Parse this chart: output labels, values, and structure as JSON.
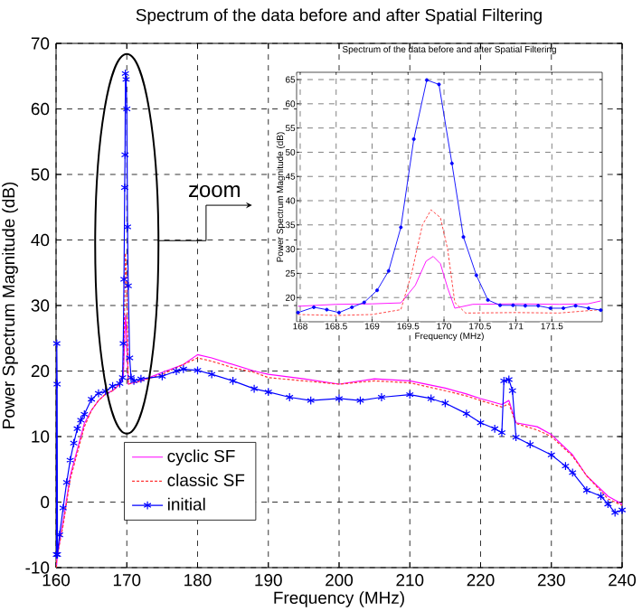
{
  "chart_data": [
    {
      "type": "line",
      "title": "Spectrum of the data before and after Spatial Filtering",
      "xlabel": "Frequency (MHz)",
      "ylabel": "Power Spectrum Magnitude (dB)",
      "xlim": [
        160,
        240
      ],
      "ylim": [
        -10,
        70
      ],
      "xticks": [
        160,
        170,
        180,
        190,
        200,
        210,
        220,
        230,
        240
      ],
      "yticks": [
        -10,
        0,
        10,
        20,
        30,
        40,
        50,
        60,
        70
      ],
      "grid": true,
      "legend": "bottom left",
      "annotations": [
        "zoom"
      ],
      "series": [
        {
          "name": "cyclic SF",
          "color": "#ff00ff",
          "line_style": "solid",
          "marker": "none",
          "x": [
            160.05,
            160.1,
            160.2,
            161,
            162,
            163,
            164,
            165,
            166,
            167,
            168,
            169,
            169.5,
            169.7,
            169.8,
            170,
            170.2,
            172,
            175,
            178,
            180,
            182,
            185,
            188,
            190,
            195,
            200,
            205,
            210,
            215,
            218,
            220,
            223,
            224,
            225,
            228,
            230,
            233,
            235,
            238,
            240
          ],
          "values": [
            -10,
            null,
            -8,
            -3,
            4,
            8,
            12,
            14,
            15.5,
            16.5,
            17,
            18,
            19,
            25,
            28.5,
            25,
            18,
            18.5,
            19.8,
            21,
            22.5,
            22,
            21,
            20,
            19.5,
            18.8,
            18,
            18.8,
            18.5,
            17.4,
            16.5,
            15.8,
            14.9,
            15.5,
            12.1,
            11.5,
            10.3,
            7.2,
            4,
            0.9,
            -0.3
          ]
        },
        {
          "name": "classic SF",
          "color": "#ff3333",
          "line_style": "dotted",
          "marker": "none",
          "x": [
            160.05,
            160.1,
            160.2,
            161,
            162,
            163,
            164,
            165,
            166,
            167,
            168,
            169,
            169.5,
            169.7,
            169.8,
            170,
            170.2,
            172,
            175,
            178,
            180,
            182,
            185,
            188,
            190,
            195,
            200,
            205,
            210,
            215,
            218,
            220,
            223,
            224,
            225,
            228,
            230,
            233,
            235,
            238,
            240
          ],
          "values": [
            -10,
            3,
            -8,
            -3.5,
            3.5,
            7.5,
            11.5,
            14,
            15.5,
            16.5,
            17,
            18,
            20,
            30,
            38,
            33,
            18,
            18.5,
            19.5,
            21,
            22,
            21.5,
            20.5,
            19.8,
            19,
            18.5,
            18,
            18.5,
            18.2,
            17,
            16.2,
            15.5,
            14.5,
            15,
            12,
            11,
            10,
            7,
            4,
            0.5,
            -0.5
          ]
        },
        {
          "name": "initial",
          "color": "#0000ff",
          "line_style": "solid",
          "marker": "cross",
          "x": [
            160.05,
            160.1,
            160.15,
            160.2,
            160.5,
            161,
            161.5,
            162,
            162.5,
            163,
            163.5,
            164,
            165,
            166,
            167,
            168,
            169,
            169.4,
            169.5,
            169.6,
            169.7,
            169.75,
            169.8,
            169.9,
            170,
            170.1,
            170.2,
            170.4,
            170.6,
            171,
            172,
            175,
            177,
            178,
            180,
            182,
            185,
            188,
            190,
            193,
            196,
            200,
            203,
            206,
            210,
            213,
            215,
            218,
            220,
            222,
            223,
            223.3,
            224,
            224.5,
            225,
            227,
            230,
            232,
            233,
            235,
            237,
            238,
            239,
            240
          ],
          "values": [
            -8,
            24.2,
            18,
            -8,
            -5,
            -0.9,
            3,
            6.4,
            9,
            11.2,
            12.5,
            13.4,
            15.7,
            16.6,
            16.9,
            17.7,
            18.1,
            19,
            24.2,
            34,
            48,
            53,
            65.4,
            64.5,
            60,
            42,
            33,
            22,
            19,
            18.5,
            18.8,
            19.2,
            20,
            20.3,
            20.1,
            19.5,
            18.5,
            17.3,
            16.8,
            16,
            15.5,
            15.8,
            15.5,
            16,
            16.4,
            15.8,
            15.1,
            13.5,
            12.1,
            11.2,
            10.6,
            18.5,
            18.7,
            17,
            9.9,
            8.8,
            7.2,
            5.5,
            4.5,
            1.8,
            0.9,
            -0.3,
            -1.6,
            -1.2
          ]
        }
      ]
    },
    {
      "type": "line",
      "title": "Spectrum of the data before and after Spatial Filtering",
      "xlabel": "Frequency (MHz)",
      "ylabel": "Power Spectrum Magnitude (dB)",
      "xlim": [
        167.95,
        172.2
      ],
      "ylim": [
        15,
        66.5
      ],
      "xticks": [
        168,
        168.5,
        169,
        169.5,
        170,
        170.5,
        171,
        171.5
      ],
      "yticks": [
        20,
        25,
        30,
        35,
        40,
        45,
        50,
        55,
        60,
        65
      ],
      "grid": true,
      "series": [
        {
          "color": "#ff00ff",
          "line_style": "solid",
          "marker": "none",
          "x": [
            167.97,
            168.5,
            169.0,
            169.4,
            169.6,
            169.75,
            169.85,
            169.95,
            170.05,
            170.15,
            170.4,
            171.0,
            171.6,
            172.0,
            172.18
          ],
          "values": [
            18.2,
            18.6,
            18.7,
            18.9,
            22.5,
            27.5,
            28.5,
            27,
            22,
            17.8,
            18.6,
            18.7,
            18.6,
            18.7,
            19.3
          ]
        },
        {
          "color": "#ff3333",
          "line_style": "dotted",
          "marker": "none",
          "x": [
            167.97,
            168.5,
            169.0,
            169.4,
            169.55,
            169.7,
            169.82,
            169.95,
            170.05,
            170.15,
            170.3,
            171.0,
            171.6,
            172.18
          ],
          "values": [
            16.5,
            16.3,
            16.5,
            17.5,
            25,
            35,
            38.1,
            36.5,
            30,
            19,
            16.8,
            16.9,
            16.8,
            17.5
          ]
        },
        {
          "color": "#0000ff",
          "line_style": "solid",
          "marker": "circle",
          "x": [
            167.97,
            168.19,
            168.37,
            168.54,
            168.72,
            168.89,
            169.07,
            169.23,
            169.4,
            169.58,
            169.76,
            169.93,
            170.11,
            170.27,
            170.45,
            170.61,
            170.78,
            170.96,
            171.13,
            171.31,
            171.48,
            171.66,
            171.83,
            172.01,
            172.18
          ],
          "values": [
            16.9,
            18,
            17.5,
            16.9,
            18,
            19,
            21.5,
            25.5,
            34.5,
            52.7,
            64.9,
            64,
            47.7,
            32.5,
            24.6,
            19.5,
            18.4,
            18.4,
            18.3,
            18.3,
            17.8,
            17.8,
            18.3,
            17.8,
            17.4
          ]
        }
      ]
    }
  ]
}
